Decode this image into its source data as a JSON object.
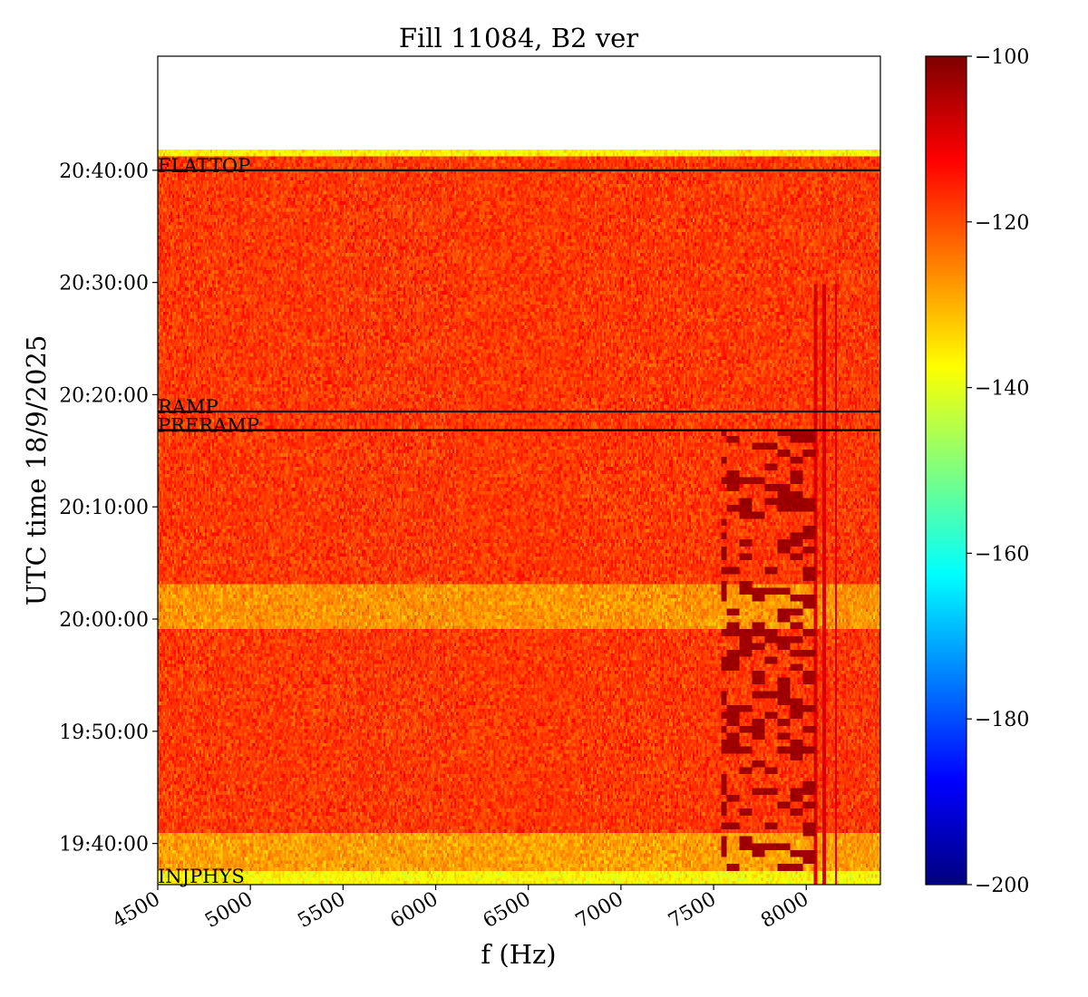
{
  "chart_data": {
    "type": "heatmap",
    "title": "Fill 11084, B2 ver",
    "xlabel": "f (Hz)",
    "ylabel": "UTC time 18/9/2025",
    "x_ticks": [
      "4500",
      "5000",
      "5500",
      "6000",
      "6500",
      "7000",
      "7500",
      "8000"
    ],
    "xlim": [
      4500,
      8400
    ],
    "y_ticks": [
      "19:40:00",
      "19:50:00",
      "20:00:00",
      "20:10:00",
      "20:20:00",
      "20:30:00",
      "20:40:00"
    ],
    "ylim": [
      "19:36:20",
      "20:50:10"
    ],
    "data_extent_time": [
      "19:36:20",
      "20:42:00"
    ],
    "colorbar": {
      "ticks": [
        "−100",
        "−120",
        "−140",
        "−160",
        "−180",
        "−200"
      ],
      "range": [
        -200,
        -100
      ],
      "colormap": "jet"
    },
    "background_level_dB": -118,
    "quiet_bands": [
      {
        "from": "19:36:20",
        "to": "19:37:40",
        "level_dB": -137
      },
      {
        "from": "19:37:40",
        "to": "19:40:50",
        "level_dB": -128
      },
      {
        "from": "19:59:00",
        "to": "20:03:10",
        "level_dB": -127
      },
      {
        "from": "20:41:20",
        "to": "20:42:00",
        "level_dB": -137
      }
    ],
    "strong_activity": {
      "freq_range_hz": [
        7600,
        8050
      ],
      "time_range": [
        "19:37:40",
        "20:17:00"
      ],
      "level_dB": -103
    },
    "vertical_lines_hz": [
      8050,
      8100,
      8160
    ],
    "markers": [
      {
        "label": "FLATTOP",
        "time": "20:40:00"
      },
      {
        "label": "RAMP",
        "time": "20:18:30"
      },
      {
        "label": "PRERAMP",
        "time": "20:16:50"
      },
      {
        "label": "INJPHYS",
        "time": "19:36:20"
      }
    ],
    "grid": false,
    "legend": "none"
  }
}
